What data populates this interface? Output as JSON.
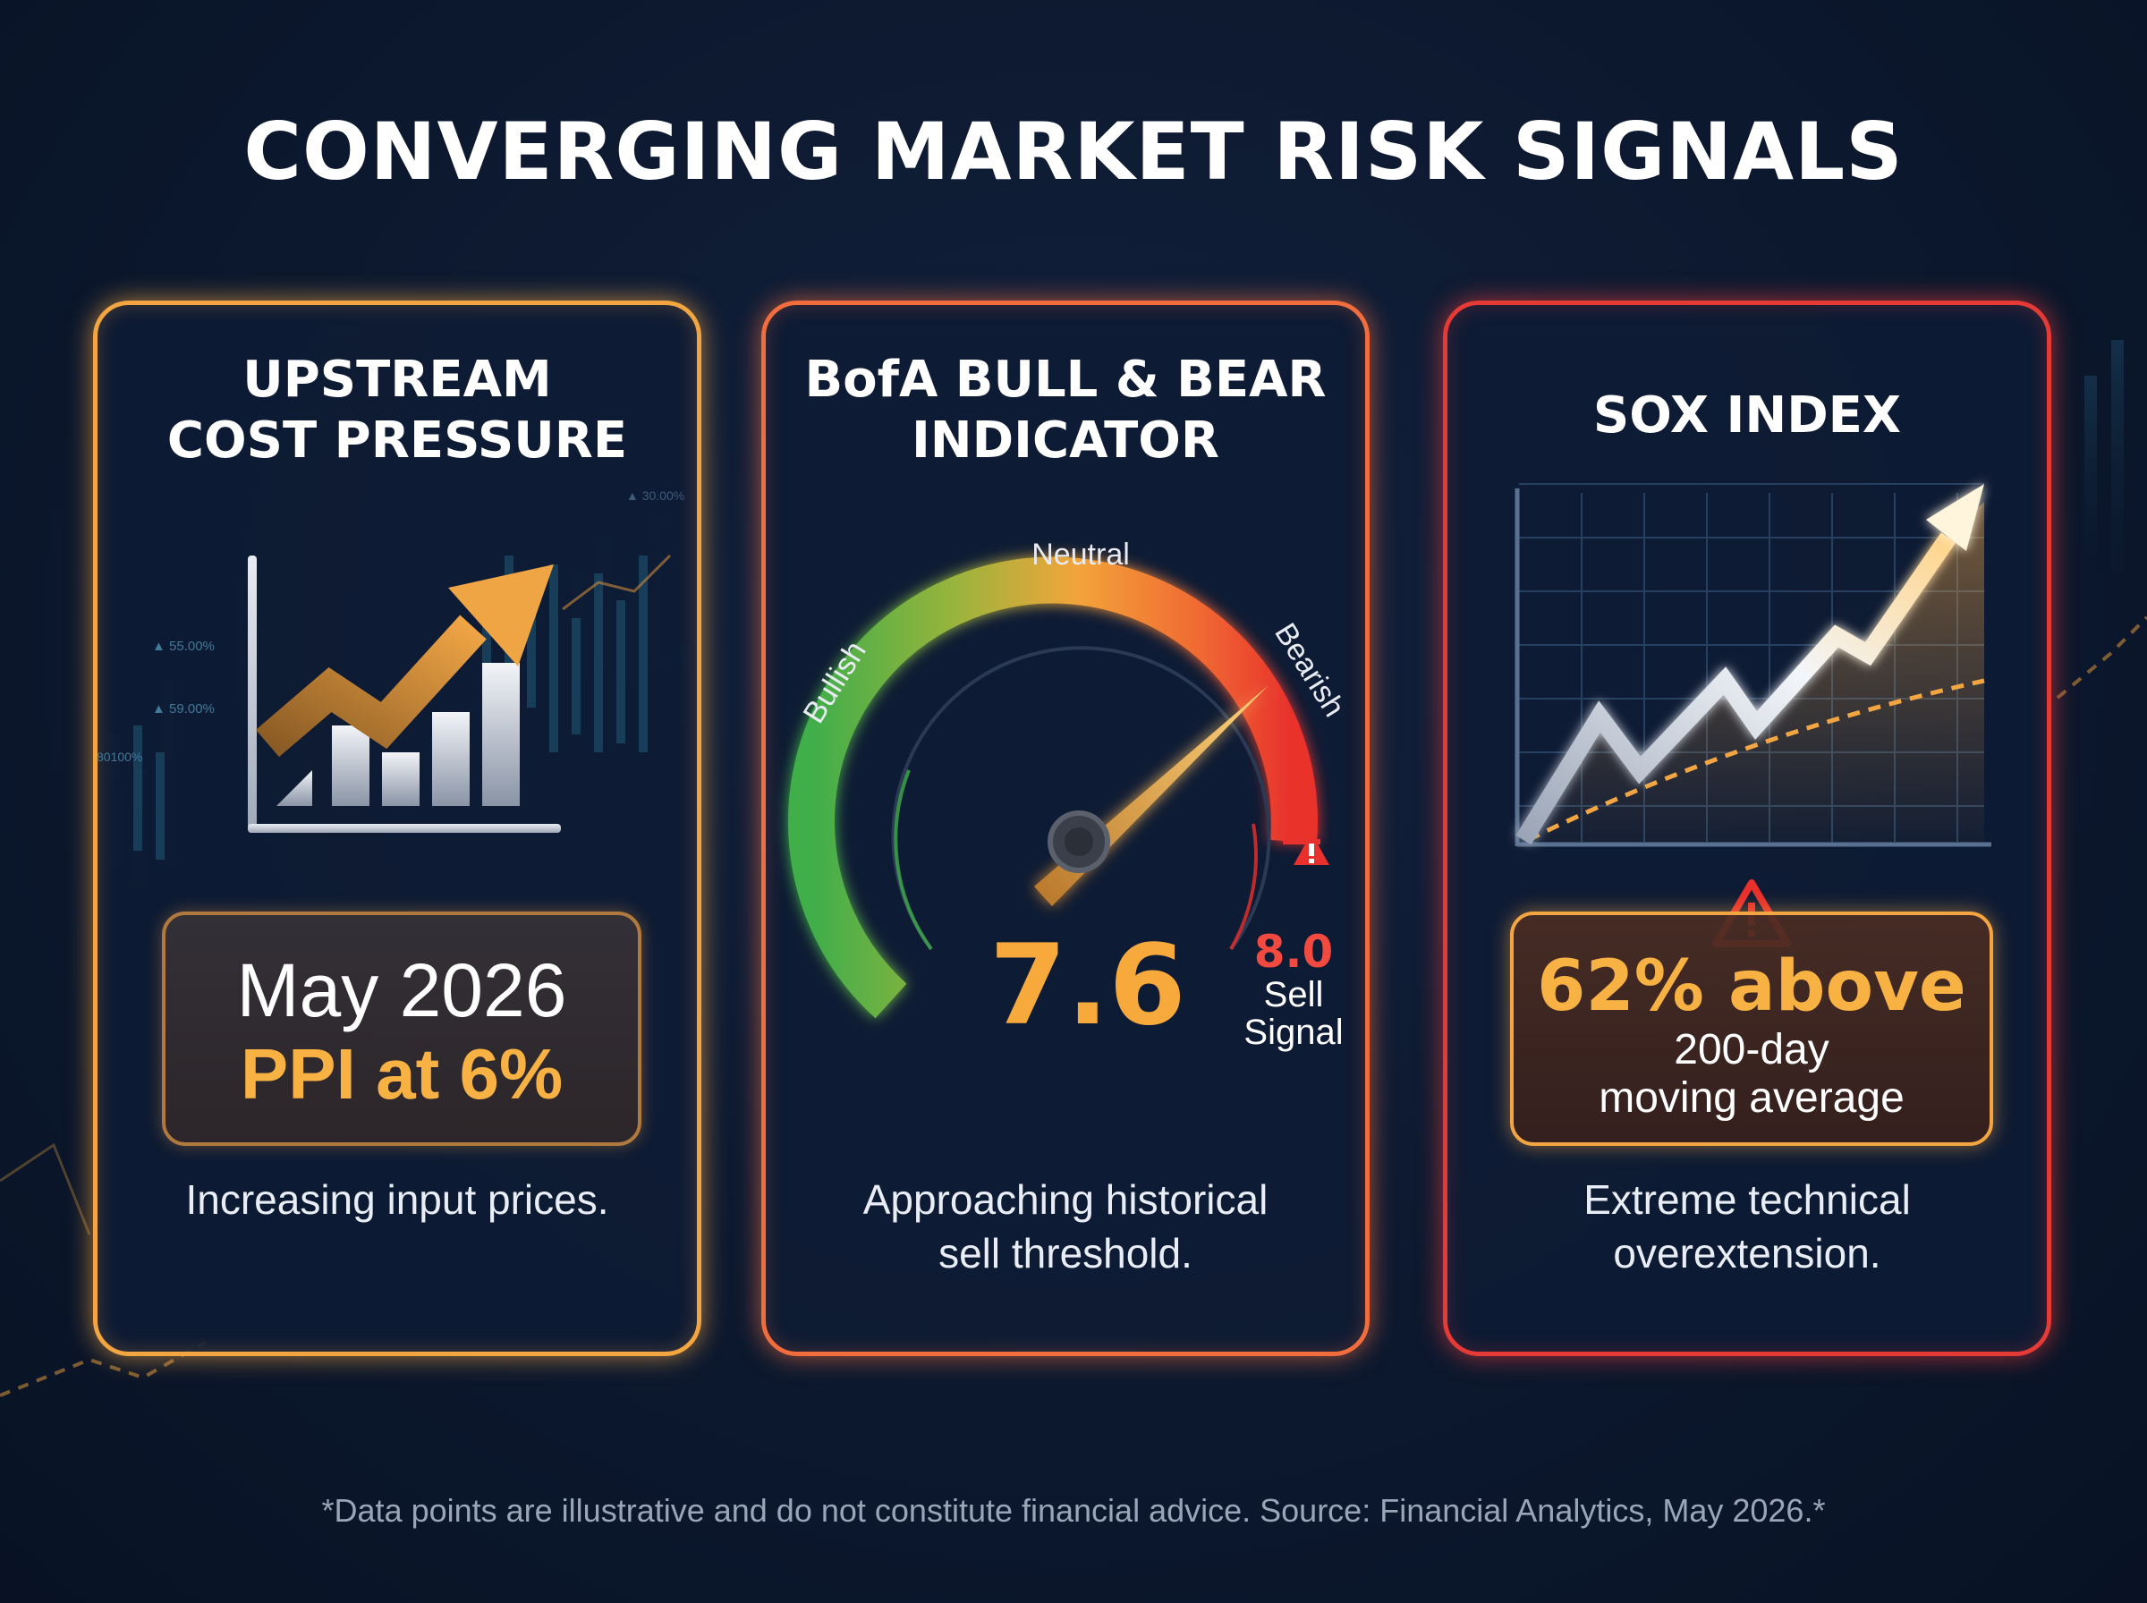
{
  "title": "CONVERGING MARKET RISK SIGNALS",
  "cards": [
    {
      "title_lines": [
        "UPSTREAM",
        "COST PRESSURE"
      ],
      "highlight": {
        "line1": "May 2026",
        "line2": "PPI at 6%"
      },
      "description_lines": [
        "Increasing input prices."
      ],
      "icon": "rising-bar-chart-arrow-icon"
    },
    {
      "title_lines": [
        "BofA BULL & BEAR",
        "INDICATOR"
      ],
      "gauge": {
        "labels": {
          "left": "Bullish",
          "top": "Neutral",
          "right": "Bearish"
        },
        "value": "7.6",
        "value_numeric": 7.6,
        "scale_max": 10,
        "threshold": "8.0",
        "threshold_label_lines": [
          "Sell",
          "Signal"
        ]
      },
      "description_lines": [
        "Approaching historical",
        "sell threshold."
      ],
      "icon": "warning-triangle-icon"
    },
    {
      "title_lines": [
        "SOX INDEX"
      ],
      "highlight": {
        "line1": "62% above",
        "line2": "200-day",
        "line3": "moving average"
      },
      "description_lines": [
        "Extreme technical",
        "overextension."
      ],
      "icon": "warning-triangle-icon"
    }
  ],
  "background_tick_labels": [
    "▲ 55.00%",
    "▲ 59.00%",
    "80100%",
    "▲ 30.00%"
  ],
  "footnote": "*Data points are illustrative and do not constitute financial advice. Source: Financial Analytics, May 2026.*",
  "colors": {
    "card1_border": "#f3a541",
    "card2_border": "#f26d3d",
    "card3_border": "#e63a36",
    "accent_orange": "#f7b243",
    "alert_red": "#f24a40",
    "gauge_green": "#4cb84c"
  }
}
